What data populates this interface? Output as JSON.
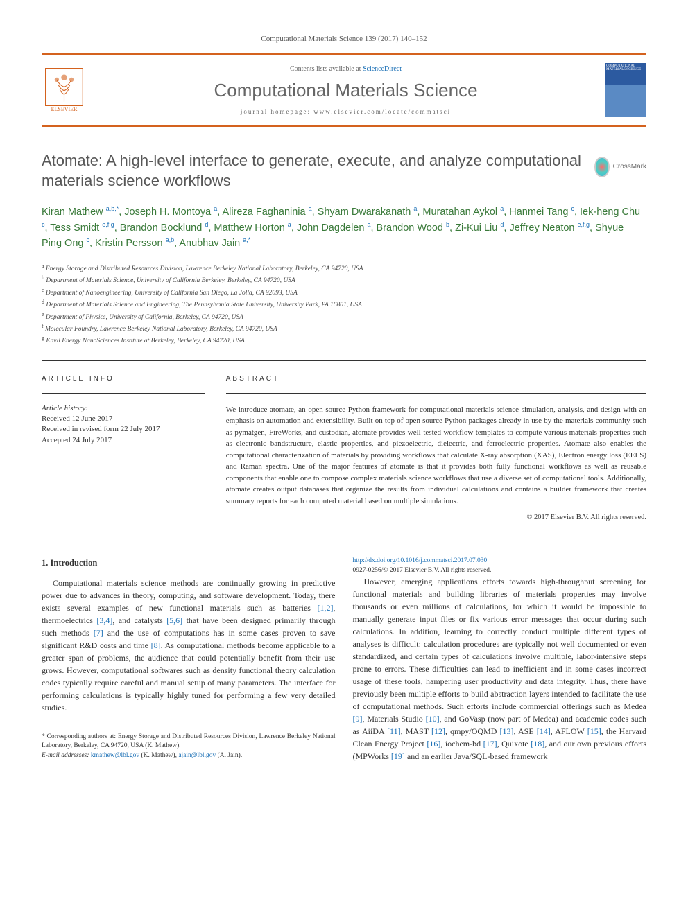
{
  "journal_ref": "Computational Materials Science 139 (2017) 140–152",
  "header": {
    "contents_prefix": "Contents lists available at ",
    "sciencedirect": "ScienceDirect",
    "journal_name": "Computational Materials Science",
    "homepage_prefix": "journal homepage: ",
    "homepage_url": "www.elsevier.com/locate/commatsci",
    "elsevier_label": "ELSEVIER",
    "cover_label": "COMPUTATIONAL MATERIALS SCIENCE"
  },
  "crossmark_label": "CrossMark",
  "title": "Atomate: A high-level interface to generate, execute, and analyze computational materials science workflows",
  "authors_html": "Kiran Mathew <sup>a,b,*</sup>, Joseph H. Montoya <sup>a</sup>, Alireza Faghaninia <sup>a</sup>, Shyam Dwarakanath <sup>a</sup>, Muratahan Aykol <sup>a</sup>, Hanmei Tang <sup>c</sup>, Iek-heng Chu <sup>c</sup>, Tess Smidt <sup>e,f,g</sup>, Brandon Bocklund <sup>d</sup>, Matthew Horton <sup>a</sup>, John Dagdelen <sup>a</sup>, Brandon Wood <sup>b</sup>, Zi-Kui Liu <sup>d</sup>, Jeffrey Neaton <sup>e,f,g</sup>, Shyue Ping Ong <sup>c</sup>, Kristin Persson <sup>a,b</sup>, Anubhav Jain <sup>a,*</sup>",
  "affiliations": [
    {
      "sup": "a",
      "text": "Energy Storage and Distributed Resources Division, Lawrence Berkeley National Laboratory, Berkeley, CA 94720, USA"
    },
    {
      "sup": "b",
      "text": "Department of Materials Science, University of California Berkeley, Berkeley, CA 94720, USA"
    },
    {
      "sup": "c",
      "text": "Department of Nanoengineering, University of California San Diego, La Jolla, CA 92093, USA"
    },
    {
      "sup": "d",
      "text": "Department of Materials Science and Engineering, The Pennsylvania State University, University Park, PA 16801, USA"
    },
    {
      "sup": "e",
      "text": "Department of Physics, University of California, Berkeley, CA 94720, USA"
    },
    {
      "sup": "f",
      "text": "Molecular Foundry, Lawrence Berkeley National Laboratory, Berkeley, CA 94720, USA"
    },
    {
      "sup": "g",
      "text": "Kavli Energy NanoSciences Institute at Berkeley, Berkeley, CA 94720, USA"
    }
  ],
  "article_info": {
    "heading": "ARTICLE INFO",
    "history_label": "Article history:",
    "items": [
      "Received 12 June 2017",
      "Received in revised form 22 July 2017",
      "Accepted 24 July 2017"
    ]
  },
  "abstract": {
    "heading": "ABSTRACT",
    "text": "We introduce atomate, an open-source Python framework for computational materials science simulation, analysis, and design with an emphasis on automation and extensibility. Built on top of open source Python packages already in use by the materials community such as pymatgen, FireWorks, and custodian, atomate provides well-tested workflow templates to compute various materials properties such as electronic bandstructure, elastic properties, and piezoelectric, dielectric, and ferroelectric properties. Atomate also enables the computational characterization of materials by providing workflows that calculate X-ray absorption (XAS), Electron energy loss (EELS) and Raman spectra. One of the major features of atomate is that it provides both fully functional workflows as well as reusable components that enable one to compose complex materials science workflows that use a diverse set of computational tools. Additionally, atomate creates output databases that organize the results from individual calculations and contains a builder framework that creates summary reports for each computed material based on multiple simulations.",
    "copyright": "© 2017 Elsevier B.V. All rights reserved."
  },
  "intro": {
    "heading": "1. Introduction",
    "para1_pre": "Computational materials science methods are continually growing in predictive power due to advances in theory, computing, and software development. Today, there exists several examples of new functional materials such as batteries ",
    "c1": "[1,2]",
    "para1_mid1": ", thermoelectrics ",
    "c2": "[3,4]",
    "para1_mid2": ", and catalysts ",
    "c3": "[5,6]",
    "para1_mid3": " that have been designed primarily through such methods ",
    "c4": "[7]",
    "para1_mid4": " and the use of computations has in some cases proven to save significant R&D costs and time ",
    "c5": "[8]",
    "para1_end": ". As computational methods become applicable to a greater span of problems, the audience that could potentially benefit from their use grows. However, computational softwares such as density functional theory calculation codes typically require careful and manual setup of many parameters. The interface for performing calculations is typically highly tuned for performing a few very detailed studies.",
    "para2_pre": "However, emerging applications efforts towards high-throughput screening for functional materials and building libraries of materials properties may involve thousands or even millions of calculations, for which it would be impossible to manually generate input files or fix various error messages that occur during such calculations. In addition, learning to correctly conduct multiple different types of analyses is difficult: calculation procedures are typically not well documented or even standardized, and certain types of calculations involve multiple, labor-intensive steps prone to errors. These difficulties can lead to inefficient and in some cases incorrect usage of these tools, hampering user productivity and data integrity. Thus, there have previously been multiple efforts to build abstraction layers intended to facilitate the use of computational methods. Such efforts include commercial offerings such as Medea ",
    "c9": "[9]",
    "para2_m1": ", Materials Studio ",
    "c10": "[10]",
    "para2_m2": ", and GoVasp (now part of Medea) and academic codes such as AiiDA ",
    "c11": "[11]",
    "para2_m3": ", MAST ",
    "c12": "[12]",
    "para2_m4": ", qmpy/OQMD ",
    "c13": "[13]",
    "para2_m5": ", ASE ",
    "c14": "[14]",
    "para2_m6": ", AFLOW ",
    "c15": "[15]",
    "para2_m7": ", the Harvard Clean Energy Project ",
    "c16": "[16]",
    "para2_m8": ", iochem-bd ",
    "c17": "[17]",
    "para2_m9": ", Quixote ",
    "c18": "[18]",
    "para2_m10": ", and our own previous efforts (MPWorks ",
    "c19": "[19]",
    "para2_end": " and an earlier Java/SQL-based framework"
  },
  "corresponding": {
    "star_note": "* Corresponding authors at: Energy Storage and Distributed Resources Division, Lawrence Berkeley National Laboratory, Berkeley, CA 94720, USA (K. Mathew).",
    "email_label": "E-mail addresses: ",
    "email1": "kmathew@lbl.gov",
    "email1_who": " (K. Mathew), ",
    "email2": "ajain@lbl.gov",
    "email2_who": " (A. Jain)."
  },
  "footer": {
    "doi": "http://dx.doi.org/10.1016/j.commatsci.2017.07.030",
    "issn_line": "0927-0256/© 2017 Elsevier B.V. All rights reserved."
  },
  "colors": {
    "accent_orange": "#d4621e",
    "link_blue": "#1a6fb5",
    "author_green": "#3a7a3a",
    "text": "#333333"
  }
}
